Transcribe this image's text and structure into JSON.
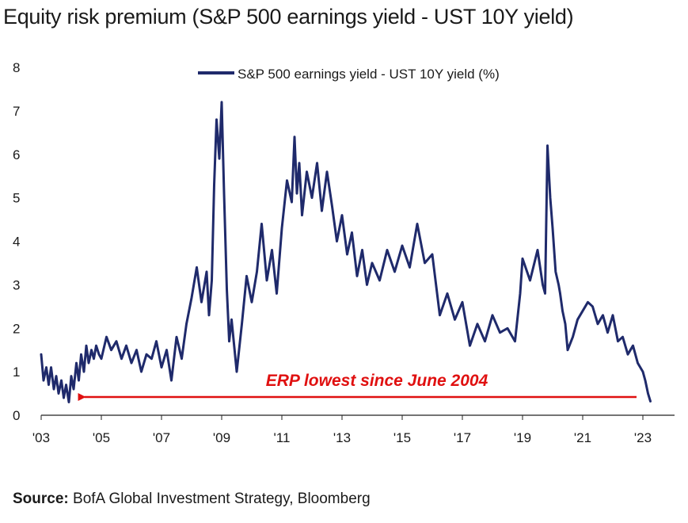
{
  "title": "Equity risk premium (S&P 500 earnings yield - UST 10Y yield)",
  "source": {
    "label": "Source:",
    "text": "BofA Global Investment Strategy, Bloomberg"
  },
  "colors": {
    "series": "#1f2a6b",
    "annotation": "#e01010",
    "axis": "#222222",
    "text": "#1a1a1a"
  },
  "chart_data": {
    "type": "line",
    "title": "Equity risk premium (S&P 500 earnings yield - UST 10Y yield)",
    "xlabel": "",
    "ylabel": "",
    "xlim": [
      2003.0,
      2024.0
    ],
    "ylim": [
      0,
      8
    ],
    "grid": false,
    "legend_position": "top-center",
    "y_ticks": [
      "0",
      "1",
      "2",
      "3",
      "4",
      "5",
      "6",
      "7",
      "8"
    ],
    "x_ticks": [
      {
        "value": 2003,
        "label": "'03"
      },
      {
        "value": 2005,
        "label": "'05"
      },
      {
        "value": 2007,
        "label": "'07"
      },
      {
        "value": 2009,
        "label": "'09"
      },
      {
        "value": 2011,
        "label": "'11"
      },
      {
        "value": 2013,
        "label": "'13"
      },
      {
        "value": 2015,
        "label": "'15"
      },
      {
        "value": 2017,
        "label": "'17"
      },
      {
        "value": 2019,
        "label": "'19"
      },
      {
        "value": 2021,
        "label": "'21"
      },
      {
        "value": 2023,
        "label": "'23"
      }
    ],
    "series": [
      {
        "name": "S&P 500 earnings yield - UST 10Y yield (%)",
        "x": [
          2003.0,
          2003.08,
          2003.17,
          2003.25,
          2003.33,
          2003.42,
          2003.5,
          2003.58,
          2003.67,
          2003.75,
          2003.83,
          2003.92,
          2004.0,
          2004.08,
          2004.17,
          2004.25,
          2004.33,
          2004.42,
          2004.5,
          2004.58,
          2004.67,
          2004.75,
          2004.83,
          2004.92,
          2005.0,
          2005.17,
          2005.33,
          2005.5,
          2005.67,
          2005.83,
          2006.0,
          2006.17,
          2006.33,
          2006.5,
          2006.67,
          2006.83,
          2007.0,
          2007.17,
          2007.33,
          2007.5,
          2007.67,
          2007.83,
          2008.0,
          2008.17,
          2008.33,
          2008.5,
          2008.58,
          2008.67,
          2008.75,
          2008.83,
          2008.92,
          2009.0,
          2009.08,
          2009.17,
          2009.25,
          2009.33,
          2009.5,
          2009.67,
          2009.83,
          2010.0,
          2010.17,
          2010.33,
          2010.5,
          2010.67,
          2010.83,
          2011.0,
          2011.17,
          2011.33,
          2011.42,
          2011.5,
          2011.58,
          2011.67,
          2011.83,
          2012.0,
          2012.17,
          2012.33,
          2012.5,
          2012.67,
          2012.83,
          2013.0,
          2013.17,
          2013.33,
          2013.5,
          2013.67,
          2013.83,
          2014.0,
          2014.25,
          2014.5,
          2014.75,
          2015.0,
          2015.25,
          2015.5,
          2015.75,
          2016.0,
          2016.25,
          2016.5,
          2016.75,
          2017.0,
          2017.25,
          2017.5,
          2017.75,
          2018.0,
          2018.25,
          2018.5,
          2018.75,
          2018.92,
          2019.0,
          2019.25,
          2019.5,
          2019.67,
          2019.75,
          2019.83,
          2019.92,
          2020.0,
          2020.1,
          2020.2,
          2020.25,
          2020.33,
          2020.42,
          2020.5,
          2020.67,
          2020.83,
          2021.0,
          2021.17,
          2021.33,
          2021.5,
          2021.67,
          2021.83,
          2022.0,
          2022.17,
          2022.33,
          2022.5,
          2022.67,
          2022.83,
          2023.0,
          2023.08,
          2023.17,
          2023.25
        ],
        "values": [
          1.4,
          0.8,
          1.1,
          0.7,
          1.1,
          0.6,
          0.9,
          0.5,
          0.8,
          0.4,
          0.7,
          0.3,
          0.9,
          0.6,
          1.2,
          0.8,
          1.4,
          1.0,
          1.6,
          1.2,
          1.5,
          1.3,
          1.6,
          1.4,
          1.3,
          1.8,
          1.5,
          1.7,
          1.3,
          1.6,
          1.2,
          1.5,
          1.0,
          1.4,
          1.3,
          1.7,
          1.1,
          1.5,
          0.8,
          1.8,
          1.3,
          2.1,
          2.7,
          3.4,
          2.6,
          3.3,
          2.3,
          3.1,
          5.3,
          6.8,
          5.9,
          7.2,
          5.1,
          2.9,
          1.7,
          2.2,
          1.0,
          2.1,
          3.2,
          2.6,
          3.3,
          4.4,
          3.1,
          3.8,
          2.8,
          4.3,
          5.4,
          4.9,
          6.4,
          5.1,
          5.8,
          4.6,
          5.6,
          5.0,
          5.8,
          4.7,
          5.6,
          4.8,
          4.0,
          4.6,
          3.7,
          4.2,
          3.2,
          3.8,
          3.0,
          3.5,
          3.1,
          3.8,
          3.3,
          3.9,
          3.4,
          4.4,
          3.5,
          3.7,
          2.3,
          2.8,
          2.2,
          2.6,
          1.6,
          2.1,
          1.7,
          2.3,
          1.9,
          2.0,
          1.7,
          2.8,
          3.6,
          3.1,
          3.8,
          3.0,
          2.8,
          6.2,
          5.0,
          4.3,
          3.3,
          3.0,
          2.8,
          2.4,
          2.1,
          1.5,
          1.8,
          2.2,
          2.4,
          2.6,
          2.5,
          2.1,
          2.3,
          1.9,
          2.3,
          1.7,
          1.8,
          1.4,
          1.6,
          1.2,
          1.0,
          0.8,
          0.5,
          0.32
        ]
      }
    ],
    "annotations": [
      {
        "text": "ERP lowest since June 2004",
        "x_from": 2023.0,
        "x_to": 2004.33,
        "y": 0.4
      }
    ]
  }
}
